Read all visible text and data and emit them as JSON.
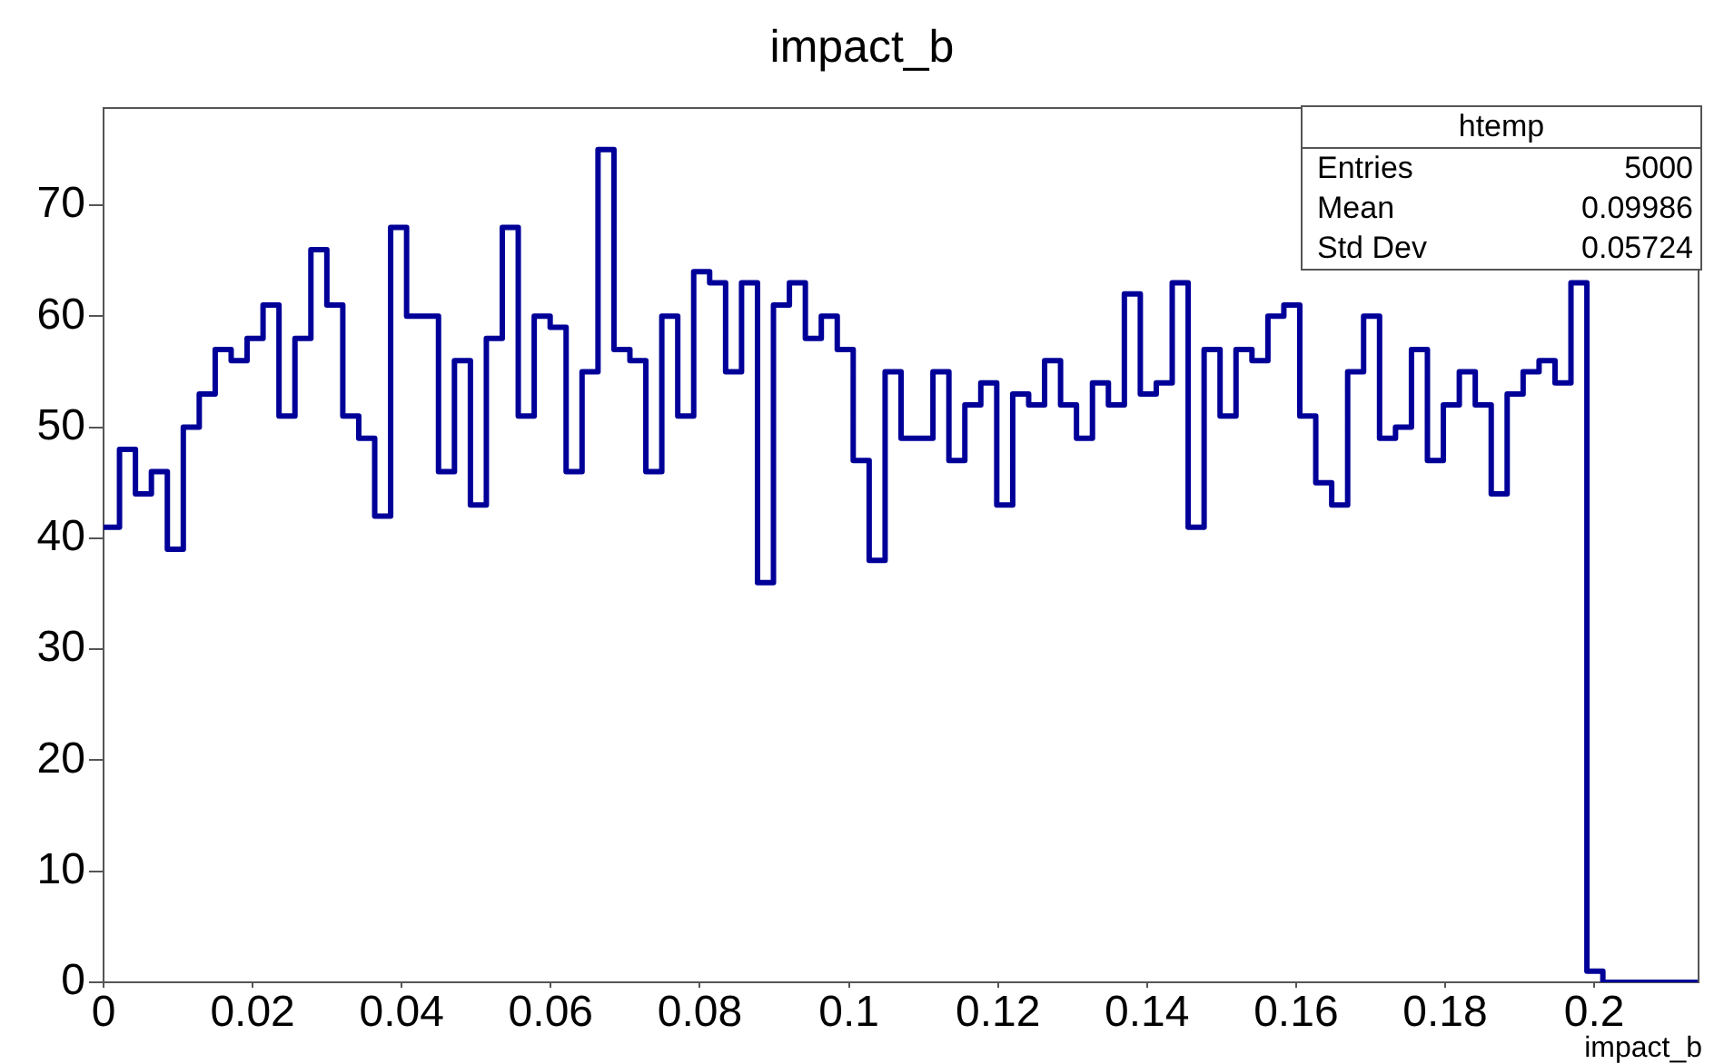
{
  "chart_data": {
    "type": "histogram",
    "title": "impact_b",
    "xlabel": "impact_b",
    "bins": [
      0,
      0.00214,
      0.00428,
      0.00642,
      0.00856,
      0.0107,
      0.01284,
      0.01498,
      0.01712,
      0.01926,
      0.0214,
      0.02354,
      0.02568,
      0.02782,
      0.02996,
      0.0321,
      0.03424,
      0.03638,
      0.03852,
      0.04066,
      0.0428,
      0.04494,
      0.04708,
      0.04922,
      0.05136,
      0.0535,
      0.05564,
      0.05778,
      0.05992,
      0.06206,
      0.0642,
      0.06634,
      0.06848,
      0.07062,
      0.07276,
      0.0749,
      0.07704,
      0.07918,
      0.08132,
      0.08346,
      0.0856,
      0.08774,
      0.08988,
      0.09202,
      0.09416,
      0.0963,
      0.09844,
      0.10058,
      0.10272,
      0.10486,
      0.107,
      0.10914,
      0.11128,
      0.11342,
      0.11556,
      0.1177,
      0.11984,
      0.12198,
      0.12412,
      0.12626,
      0.1284,
      0.13054,
      0.13268,
      0.13482,
      0.13696,
      0.1391,
      0.14124,
      0.14338,
      0.14552,
      0.14766,
      0.1498,
      0.15194,
      0.15408,
      0.15622,
      0.15836,
      0.1605,
      0.16264,
      0.16478,
      0.16692,
      0.16906,
      0.1712,
      0.17334,
      0.17548,
      0.17762,
      0.17976,
      0.1819,
      0.18404,
      0.18618,
      0.18832,
      0.19046,
      0.1926,
      0.19474,
      0.19688,
      0.19902,
      0.20116,
      0.2033,
      0.20544,
      0.20758,
      0.20972,
      0.21186,
      0.214
    ],
    "values": [
      41,
      48,
      44,
      46,
      39,
      50,
      53,
      57,
      56,
      58,
      61,
      51,
      58,
      66,
      61,
      51,
      49,
      42,
      68,
      60,
      60,
      46,
      56,
      43,
      58,
      68,
      51,
      60,
      59,
      46,
      55,
      75,
      57,
      56,
      46,
      60,
      51,
      64,
      63,
      55,
      63,
      36,
      61,
      63,
      58,
      60,
      57,
      47,
      38,
      55,
      49,
      49,
      55,
      47,
      52,
      54,
      43,
      53,
      52,
      56,
      52,
      49,
      54,
      52,
      62,
      53,
      54,
      63,
      41,
      57,
      51,
      57,
      56,
      60,
      61,
      51,
      45,
      43,
      55,
      60,
      49,
      50,
      57,
      47,
      52,
      55,
      52,
      44,
      53,
      55,
      56,
      54,
      63,
      1,
      0,
      0,
      0,
      0,
      0,
      0
    ],
    "color": "#000099",
    "xlim": [
      0,
      0.214
    ],
    "xticks": [
      0,
      0.02,
      0.04,
      0.06,
      0.08,
      0.1,
      0.12,
      0.14,
      0.16,
      0.18,
      0.2
    ],
    "ylim": [
      0,
      78.75
    ],
    "yticks": [
      0,
      10,
      20,
      30,
      40,
      50,
      60,
      70
    ],
    "grid": false,
    "legend": false,
    "annotations": [
      "htemp",
      "Entries",
      "5000",
      "Mean",
      "0.09986",
      "Std Dev",
      "0.05724"
    ]
  }
}
